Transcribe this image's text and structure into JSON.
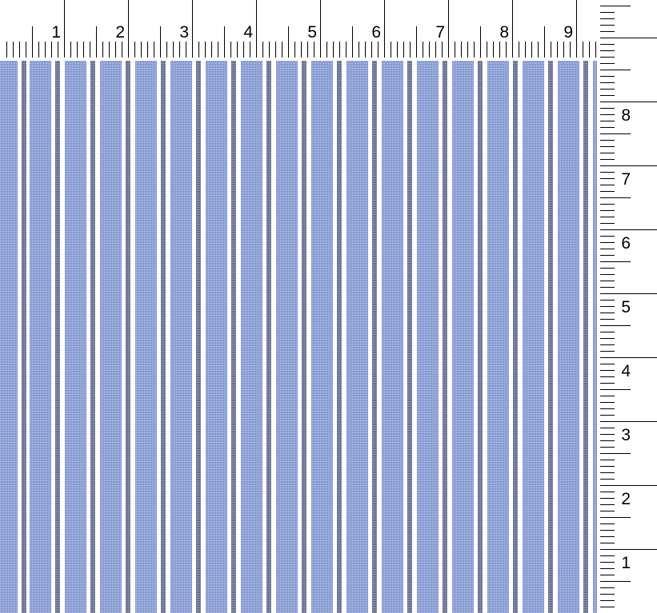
{
  "top_ruler": {
    "labels": [
      "1",
      "2",
      "3",
      "4",
      "5",
      "6",
      "7",
      "8",
      "9"
    ]
  },
  "right_ruler": {
    "labels": [
      "1",
      "2",
      "3",
      "4",
      "5",
      "6",
      "7",
      "8"
    ]
  },
  "fabric": {
    "pattern": "vertical-stripes",
    "colors": {
      "stripe": "#7d93d0",
      "pinstripe": "#5c6488",
      "ground": "#ffffff"
    }
  }
}
